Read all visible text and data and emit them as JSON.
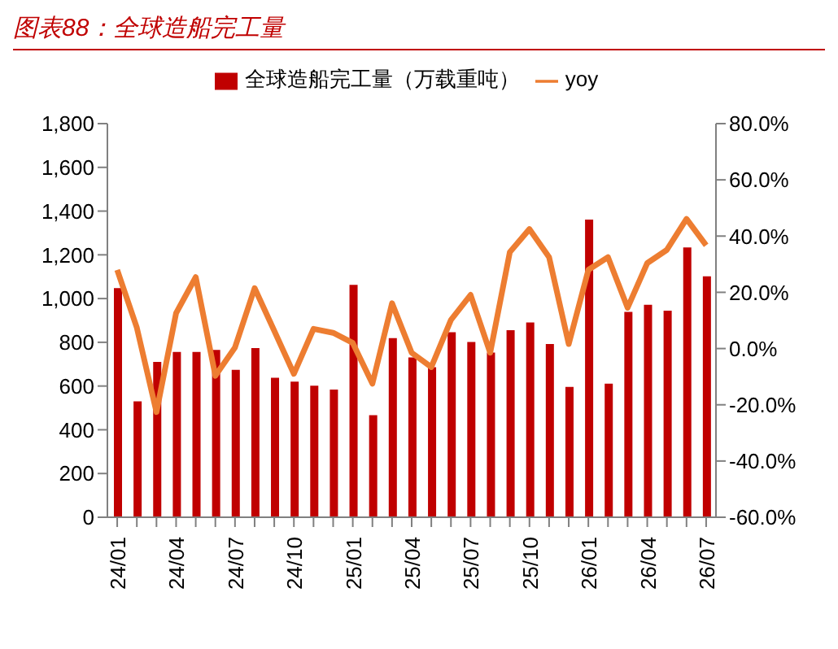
{
  "chart_data": {
    "type": "bar",
    "title": "图表88：全球造船完工量",
    "categories": [
      "24/01",
      null,
      null,
      "24/04",
      null,
      null,
      "24/07",
      null,
      null,
      "24/10",
      null,
      null,
      "25/01",
      null,
      null,
      "25/04",
      null,
      null,
      "25/07",
      null,
      null,
      "25/10",
      null,
      null,
      "26/01",
      null,
      null,
      "26/04",
      null,
      null,
      "26/07"
    ],
    "series": [
      {
        "name": "全球造船完工量（万载重吨）",
        "color": "#c00000",
        "values": [
          1048,
          530,
          710,
          756,
          756,
          765,
          674,
          774,
          638,
          620,
          602,
          584,
          1063,
          467,
          819,
          731,
          686,
          846,
          801,
          753,
          855,
          891,
          792,
          596,
          1361,
          611,
          939,
          972,
          945,
          1234,
          1102
        ]
      },
      {
        "name": "yoy",
        "type": "line",
        "axis": "y2",
        "color": "#ed7d31",
        "values": [
          28,
          7.4,
          -22.6,
          12.6,
          25.4,
          -9.7,
          0.4,
          21.5,
          6.3,
          -9.0,
          7.0,
          5.6,
          2.0,
          -12.5,
          16.1,
          -1.5,
          -6.6,
          10.2,
          19.1,
          -1.5,
          34.3,
          42.5,
          32.5,
          1.6,
          28.0,
          32.5,
          14.5,
          30.4,
          35.1,
          46.1,
          36.7
        ]
      }
    ],
    "ylim": [
      0,
      1800
    ],
    "yticks": [
      {
        "value": 0,
        "label": "0"
      },
      {
        "value": 200,
        "label": "200"
      },
      {
        "value": 400,
        "label": "400"
      },
      {
        "value": 600,
        "label": "600"
      },
      {
        "value": 800,
        "label": "800"
      },
      {
        "value": 1000,
        "label": "1,000"
      },
      {
        "value": 1200,
        "label": "1,200"
      },
      {
        "value": 1400,
        "label": "1,400"
      },
      {
        "value": 1600,
        "label": "1,600"
      },
      {
        "value": 1800,
        "label": "1,800"
      }
    ],
    "y2lim": [
      -60,
      80
    ],
    "y2ticks": [
      {
        "value": -60,
        "label": "-60.0%"
      },
      {
        "value": -40,
        "label": "-40.0%"
      },
      {
        "value": -20,
        "label": "-20.0%"
      },
      {
        "value": 0,
        "label": "0.0%"
      },
      {
        "value": 20,
        "label": "20.0%"
      },
      {
        "value": 40,
        "label": "40.0%"
      },
      {
        "value": 60,
        "label": "60.0%"
      },
      {
        "value": 80,
        "label": "80.0%"
      }
    ],
    "grid": false,
    "legend": "top",
    "marker": "none"
  }
}
